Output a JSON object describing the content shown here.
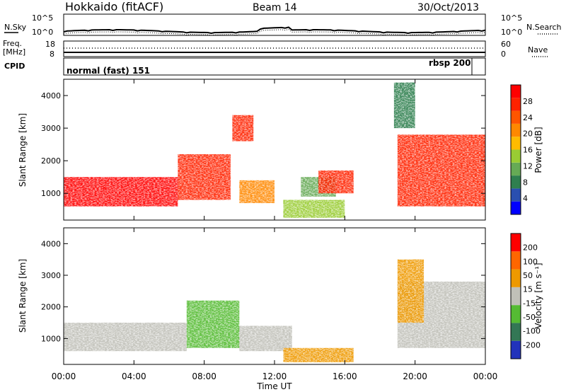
{
  "header": {
    "station": "Hokkaido (fitACF)",
    "beam": "Beam 14",
    "date": "30/Oct/2013"
  },
  "noise_panel": {
    "left_label": "N.Sky",
    "right_label": "N.Search",
    "left_ticks": [
      "10^5",
      "10^0"
    ],
    "right_ticks": [
      "10^5",
      "10^0"
    ]
  },
  "freq_panel": {
    "left_label_1": "Freq.",
    "left_label_2": "[MHz]",
    "right_label": "Nave",
    "left_ticks": [
      "18",
      "8"
    ],
    "right_ticks": [
      "60",
      "0"
    ]
  },
  "cpid_panel": {
    "label": "CPID",
    "mode_1": "normal (fast) 151",
    "mode_2": "rbsp 200"
  },
  "power_panel": {
    "ylabel": "Slant Range [km]",
    "yticks": [
      "4000",
      "3000",
      "2000",
      "1000"
    ],
    "colorbar_label": "Power [dB]",
    "colorbar_ticks": [
      "28",
      "24",
      "20",
      "16",
      "12",
      "8",
      "4"
    ],
    "colors": [
      "#0000ff",
      "#2a4fb0",
      "#2f7f4f",
      "#66aa55",
      "#99cc33",
      "#ffbb00",
      "#ff8800",
      "#ff5500",
      "#ff2200",
      "#ff0000"
    ]
  },
  "velocity_panel": {
    "ylabel": "Slant Range [km]",
    "yticks": [
      "4000",
      "3000",
      "2000",
      "1000"
    ],
    "colorbar_label": "Velocity [m s⁻¹]",
    "colorbar_ticks": [
      "200",
      "100",
      "50",
      "15",
      "-15",
      "-50",
      "-100",
      "-200"
    ],
    "colors": [
      "#2233bb",
      "#337755",
      "#55bb33",
      "#c0c0b8",
      "#ee9900",
      "#ff6600",
      "#ff0000"
    ]
  },
  "xaxis": {
    "label": "Time UT",
    "ticks": [
      "00:00",
      "04:00",
      "08:00",
      "12:00",
      "16:00",
      "20:00",
      "00:00"
    ]
  },
  "chart_data": [
    {
      "type": "heatmap",
      "title": "Hokkaido (fitACF)",
      "xlabel": "Time UT",
      "ylabel": "Slant Range [km]",
      "colorbar": "Power [dB]",
      "xlim_hours": [
        0,
        24
      ],
      "ylim_km": [
        180,
        4500
      ],
      "clim": [
        0,
        30
      ],
      "regions": [
        {
          "t0": 0.0,
          "t1": 6.5,
          "r0": 600,
          "r1": 1500,
          "value": 27
        },
        {
          "t0": 6.5,
          "t1": 9.5,
          "r0": 800,
          "r1": 2200,
          "value": 25
        },
        {
          "t0": 9.6,
          "t1": 10.8,
          "r0": 2600,
          "r1": 3400,
          "value": 24
        },
        {
          "t0": 10.0,
          "t1": 12.0,
          "r0": 700,
          "r1": 1400,
          "value": 18
        },
        {
          "t0": 12.5,
          "t1": 16.0,
          "r0": 250,
          "r1": 800,
          "value": 14
        },
        {
          "t0": 13.5,
          "t1": 15.5,
          "r0": 900,
          "r1": 1500,
          "value": 10
        },
        {
          "t0": 14.5,
          "t1": 16.5,
          "r0": 1000,
          "r1": 1700,
          "value": 24
        },
        {
          "t0": 19.0,
          "t1": 24.0,
          "r0": 600,
          "r1": 2800,
          "value": 26
        },
        {
          "t0": 18.8,
          "t1": 20.0,
          "r0": 3000,
          "r1": 4400,
          "value": 8
        }
      ]
    },
    {
      "type": "heatmap",
      "title": "",
      "xlabel": "Time UT",
      "ylabel": "Slant Range [km]",
      "colorbar": "Velocity [m s-1]",
      "xlim_hours": [
        0,
        24
      ],
      "ylim_km": [
        180,
        4500
      ],
      "clim": [
        -200,
        200
      ],
      "regions": [
        {
          "t0": 0.0,
          "t1": 7.0,
          "r0": 600,
          "r1": 1500,
          "value": 0
        },
        {
          "t0": 7.0,
          "t1": 10.0,
          "r0": 700,
          "r1": 2200,
          "value": -40
        },
        {
          "t0": 10.0,
          "t1": 13.0,
          "r0": 600,
          "r1": 1400,
          "value": 0
        },
        {
          "t0": 12.5,
          "t1": 16.5,
          "r0": 250,
          "r1": 700,
          "value": 60
        },
        {
          "t0": 19.0,
          "t1": 24.0,
          "r0": 700,
          "r1": 2800,
          "value": 0
        },
        {
          "t0": 19.0,
          "t1": 20.5,
          "r0": 1500,
          "r1": 3500,
          "value": 50
        }
      ]
    }
  ]
}
